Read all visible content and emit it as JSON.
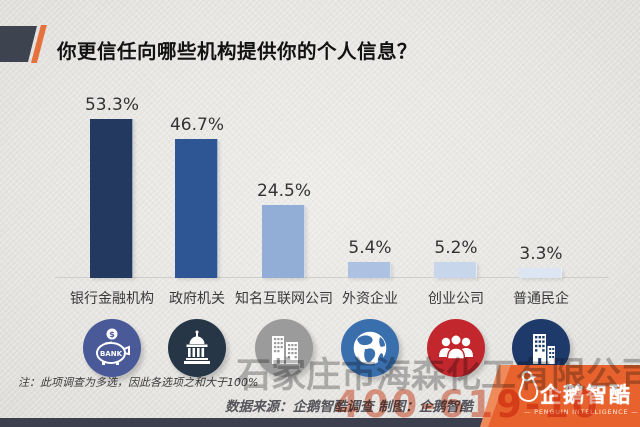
{
  "title": "你更信任向哪些机构提供你的个人信息？",
  "chart_data": {
    "type": "bar",
    "title": "你更信任向哪些机构提供你的个人信息？",
    "categories": [
      "银行金融机构",
      "政府机关",
      "知名互联网公司",
      "外资企业",
      "创业公司",
      "普通民企"
    ],
    "values": [
      53.3,
      46.7,
      24.5,
      5.4,
      5.2,
      3.3
    ],
    "value_labels": [
      "53.3%",
      "46.7%",
      "24.5%",
      "5.4%",
      "5.2%",
      "3.3%"
    ],
    "bar_colors": [
      "#24395f",
      "#2e5694",
      "#93aed6",
      "#adc2e2",
      "#c8d6ec",
      "#dce5f2"
    ],
    "icons": [
      "piggy-bank",
      "capitol",
      "office-buildings",
      "globe",
      "people-group",
      "office-tower"
    ],
    "icon_colors": [
      "#4a5a99",
      "#263646",
      "#9b9b9b",
      "#3a6fad",
      "#c2272d",
      "#1d3a6b"
    ],
    "xlabel": "",
    "ylabel": "",
    "ylim": [
      0,
      60
    ],
    "grid": false,
    "legend": "none"
  },
  "icon_text": {
    "bank_coin": "$",
    "bank_label": "BANK"
  },
  "footer": {
    "note": "注：此项调查为多选，因此各选项之和大于100%",
    "source": "数据来源：企鹅智酷调查 制图：企鹅智酷"
  },
  "logo": {
    "name": "企鹅智酷",
    "subtitle": "— PENGUIN INTELLIGENCE —",
    "accent_color": "#e8622e"
  },
  "watermark": {
    "company": "石家庄市海森化工有限公司",
    "phone": "400-619-10"
  },
  "colors": {
    "background": "#e7e6e3",
    "header_block": "#3e4350",
    "header_slash": "#e7713c",
    "bottom_bar": "#3b3f4e",
    "baseline": "#cfcec9"
  }
}
